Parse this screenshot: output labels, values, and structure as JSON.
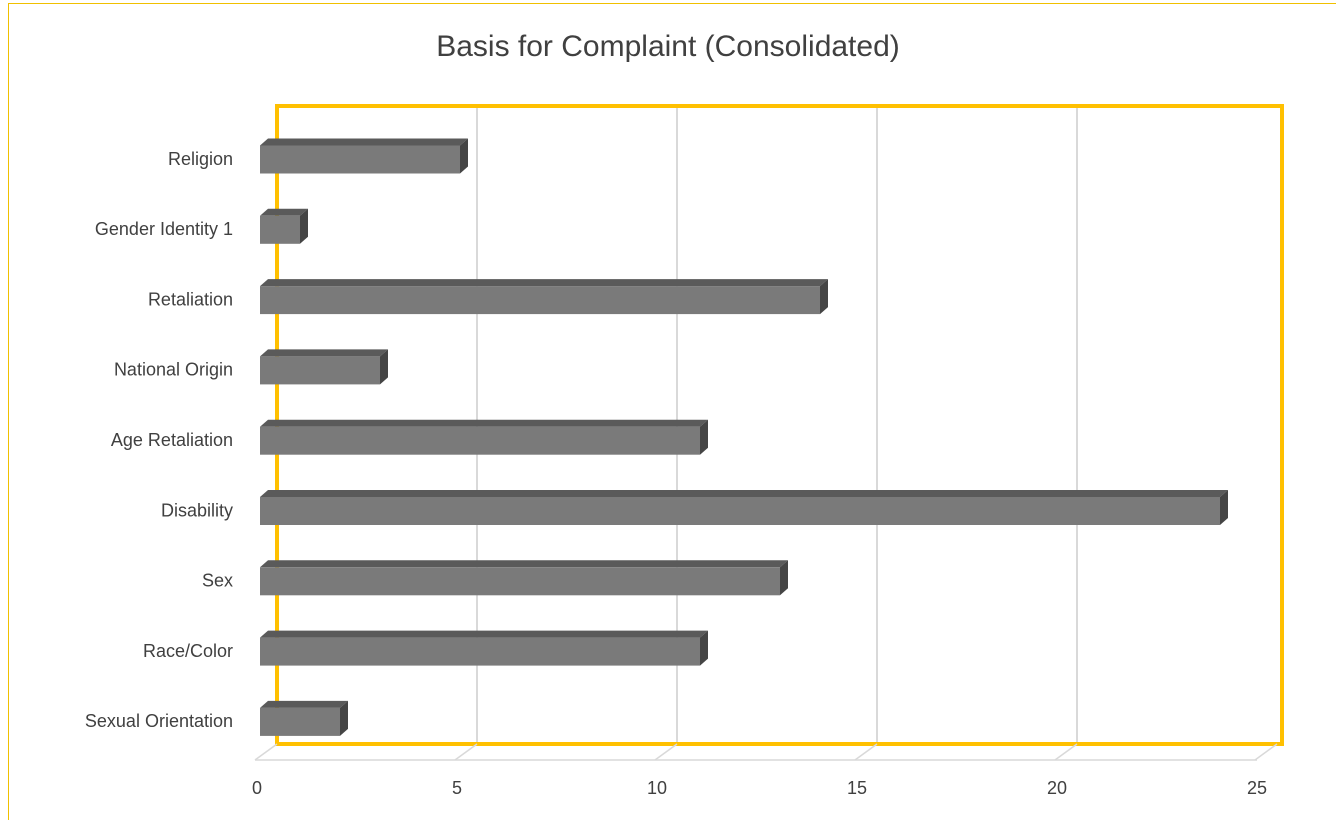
{
  "chart_data": {
    "type": "bar3d_horizontal",
    "title": "Basis for Complaint (Consolidated)",
    "categories": [
      "Religion",
      "Gender Identity 1",
      "Retaliation",
      "National Origin",
      "Age Retaliation",
      "Disability",
      "Sex",
      "Race/Color",
      "Sexual Orientation"
    ],
    "values": [
      5,
      1,
      14,
      3,
      11,
      24,
      13,
      11,
      2
    ],
    "color": "#7a7a7a",
    "wall_color": "#ffc000",
    "xlim": [
      0,
      25
    ],
    "xticks": [
      0,
      5,
      10,
      15,
      20,
      25
    ],
    "grid": true
  }
}
